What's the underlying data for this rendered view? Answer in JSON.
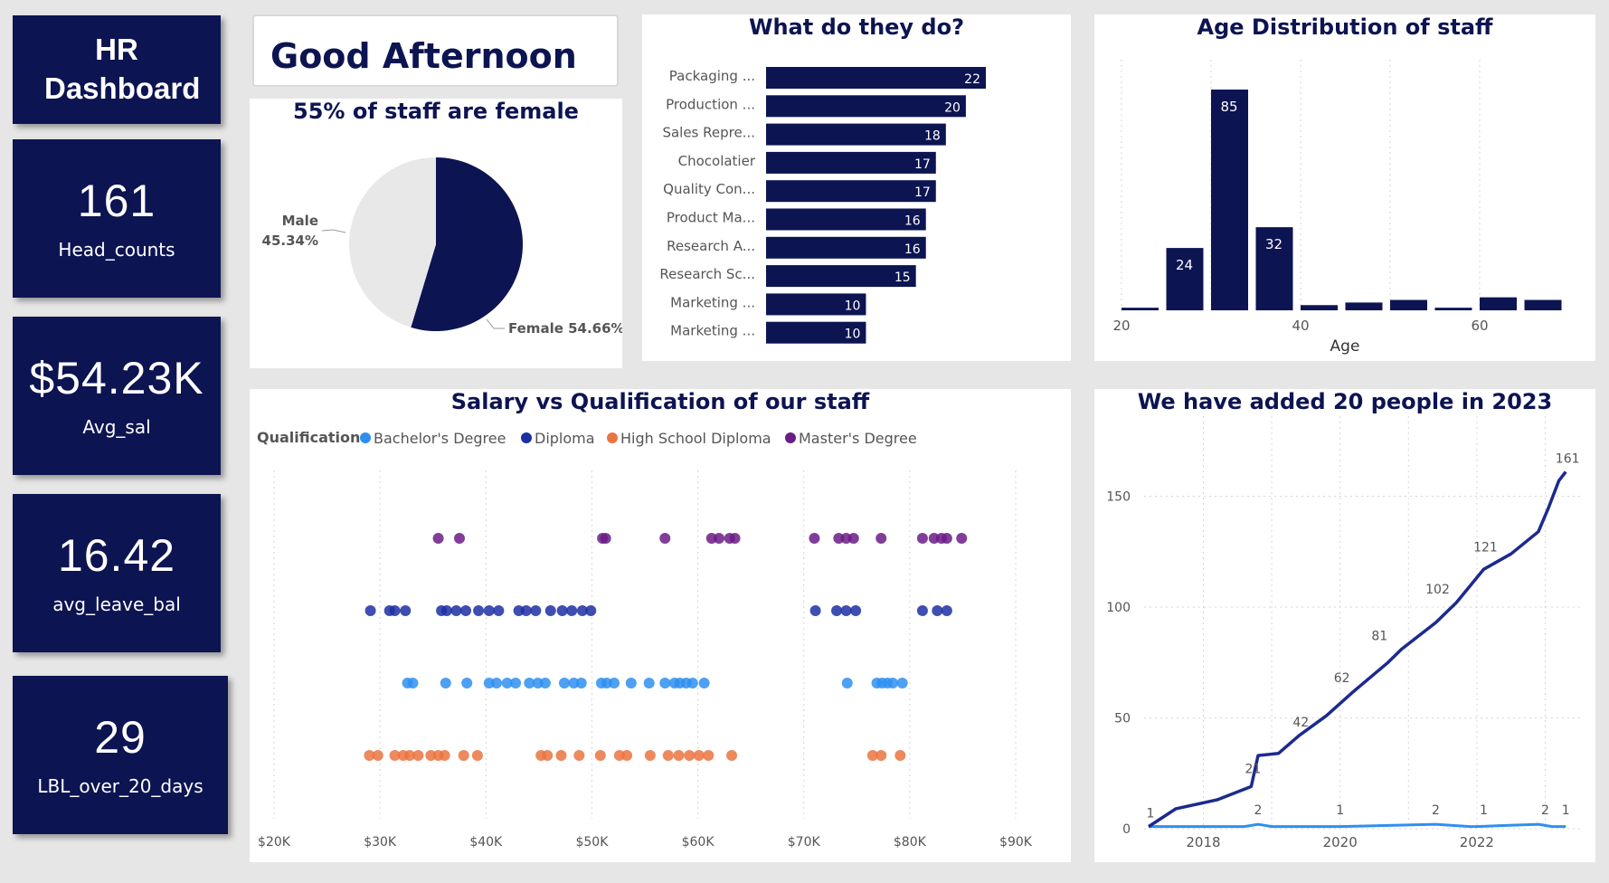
{
  "kpis": {
    "title": "HR Dashboard",
    "head_count": {
      "value": "161",
      "label": "Head_counts"
    },
    "avg_sal": {
      "value": "$54.23K",
      "label": "Avg_sal"
    },
    "avg_leave": {
      "value": "16.42",
      "label": "avg_leave_bal"
    },
    "lbl_over": {
      "value": "29",
      "label": "LBL_over_20_days"
    }
  },
  "greeting": "Good Afternoon",
  "colors": {
    "navy": "#0d1452",
    "bachelor": "#2f8ff0",
    "diploma": "#1c2fa3",
    "highschool": "#ea7440",
    "master": "#6b1c86",
    "pie_male": "#e8e8e8"
  },
  "chart_data": [
    {
      "type": "pie",
      "title": "55% of staff are female",
      "slices": [
        {
          "label": "Male",
          "pct_text": "45.34%",
          "value": 45.34
        },
        {
          "label": "Female",
          "pct_text": "54.66%",
          "value": 54.66
        }
      ]
    },
    {
      "type": "bar",
      "orientation": "horizontal",
      "title": "What do they do?",
      "categories": [
        "Packaging ...",
        "Production ...",
        "Sales Repre...",
        "Chocolatier",
        "Quality Con...",
        "Product Ma...",
        "Research A...",
        "Research Sc...",
        "Marketing ...",
        "Marketing ..."
      ],
      "values": [
        22,
        20,
        18,
        17,
        17,
        16,
        16,
        15,
        10,
        10
      ]
    },
    {
      "type": "bar",
      "title": "Age Distribution of staff",
      "xlabel": "Age",
      "x_ticks": [
        20,
        40,
        60
      ],
      "bins": [
        {
          "x": 20,
          "value": 1
        },
        {
          "x": 25,
          "value": 24
        },
        {
          "x": 30,
          "value": 85
        },
        {
          "x": 35,
          "value": 32
        },
        {
          "x": 40,
          "value": 2
        },
        {
          "x": 45,
          "value": 3
        },
        {
          "x": 50,
          "value": 4
        },
        {
          "x": 55,
          "value": 1
        },
        {
          "x": 60,
          "value": 5
        },
        {
          "x": 65,
          "value": 4
        }
      ],
      "labeled_values": [
        24,
        85,
        32
      ]
    },
    {
      "type": "scatter",
      "title": "Salary vs Qualification of our staff",
      "legend_title": "Qualification",
      "x_ticks": [
        "$20K",
        "$30K",
        "$40K",
        "$50K",
        "$60K",
        "$70K",
        "$80K",
        "$90K"
      ],
      "xlim": [
        20,
        90
      ],
      "series": [
        {
          "name": "Bachelor's Degree",
          "values": [
            32.6,
            33.1,
            36.2,
            38.2,
            40.3,
            41.0,
            42.0,
            42.8,
            44.1,
            44.9,
            45.6,
            47.4,
            48.3,
            49.0,
            50.9,
            51.4,
            52.1,
            53.7,
            55.4,
            56.9,
            57.8,
            58.3,
            58.9,
            59.5,
            60.6,
            74.1,
            76.9,
            77.4,
            77.9,
            78.4,
            79.3
          ]
        },
        {
          "name": "Diploma",
          "values": [
            29.1,
            30.9,
            31.4,
            32.4,
            35.8,
            36.3,
            37.2,
            38.1,
            39.3,
            40.3,
            41.2,
            43.1,
            43.8,
            44.7,
            46.1,
            47.2,
            48.1,
            49.1,
            49.9,
            71.1,
            73.1,
            74.0,
            74.9,
            81.2,
            82.6,
            83.5
          ]
        },
        {
          "name": "High School Diploma",
          "values": [
            29.0,
            29.8,
            31.4,
            32.2,
            32.8,
            33.6,
            34.8,
            35.5,
            36.1,
            37.9,
            39.2,
            45.2,
            45.8,
            47.1,
            48.8,
            50.8,
            52.6,
            53.3,
            55.5,
            57.2,
            58.2,
            59.2,
            60.1,
            61.0,
            63.2,
            76.5,
            77.3,
            79.1
          ]
        },
        {
          "name": "Master's Degree",
          "values": [
            35.5,
            37.5,
            51.0,
            51.3,
            56.9,
            61.3,
            62.0,
            63.0,
            63.5,
            71.0,
            73.3,
            74.0,
            74.7,
            77.3,
            81.2,
            82.3,
            83.0,
            83.5,
            84.9
          ]
        }
      ]
    },
    {
      "type": "line",
      "title": "We have added 20 people in 2023",
      "x_ticks": [
        2018,
        2020,
        2022
      ],
      "y_ticks": [
        0,
        50,
        100,
        150
      ],
      "series": [
        {
          "role": "cumulative",
          "points": [
            [
              2017.2,
              1
            ],
            [
              2017.6,
              9
            ],
            [
              2018.2,
              13
            ],
            [
              2018.7,
              19
            ],
            [
              2018.8,
              33
            ],
            [
              2019.1,
              34
            ],
            [
              2019.4,
              42
            ],
            [
              2019.8,
              51
            ],
            [
              2020.2,
              62
            ],
            [
              2020.7,
              75
            ],
            [
              2020.9,
              81
            ],
            [
              2021.4,
              93
            ],
            [
              2021.7,
              102
            ],
            [
              2022.1,
              117
            ],
            [
              2022.5,
              124
            ],
            [
              2022.9,
              134
            ],
            [
              2023.05,
              145
            ],
            [
              2023.2,
              157
            ],
            [
              2023.3,
              161
            ]
          ]
        },
        {
          "role": "monthly",
          "points": [
            [
              2017.2,
              1
            ],
            [
              2018.6,
              1
            ],
            [
              2018.8,
              2
            ],
            [
              2019.0,
              1
            ],
            [
              2020.0,
              1
            ],
            [
              2021.4,
              2
            ],
            [
              2021.9,
              1
            ],
            [
              2022.0,
              1
            ],
            [
              2022.9,
              2
            ],
            [
              2023.1,
              1
            ],
            [
              2023.3,
              1
            ]
          ]
        }
      ],
      "labels_cumulative": [
        {
          "x": 2017.2,
          "y": 1,
          "text": "1"
        },
        {
          "x": 2018.7,
          "y": 21,
          "text": "21"
        },
        {
          "x": 2019.4,
          "y": 42,
          "text": "42"
        },
        {
          "x": 2020.0,
          "y": 62,
          "text": "62"
        },
        {
          "x": 2020.55,
          "y": 81,
          "text": "81"
        },
        {
          "x": 2021.4,
          "y": 102,
          "text": "102"
        },
        {
          "x": 2022.1,
          "y": 121,
          "text": "121"
        },
        {
          "x": 2023.3,
          "y": 161,
          "text": "161"
        }
      ],
      "labels_monthly": [
        {
          "x": 2018.8,
          "text": "2"
        },
        {
          "x": 2020.0,
          "text": "1"
        },
        {
          "x": 2021.4,
          "text": "2"
        },
        {
          "x": 2022.1,
          "text": "1"
        },
        {
          "x": 2023.0,
          "text": "2"
        },
        {
          "x": 2023.3,
          "text": "1"
        }
      ]
    }
  ]
}
